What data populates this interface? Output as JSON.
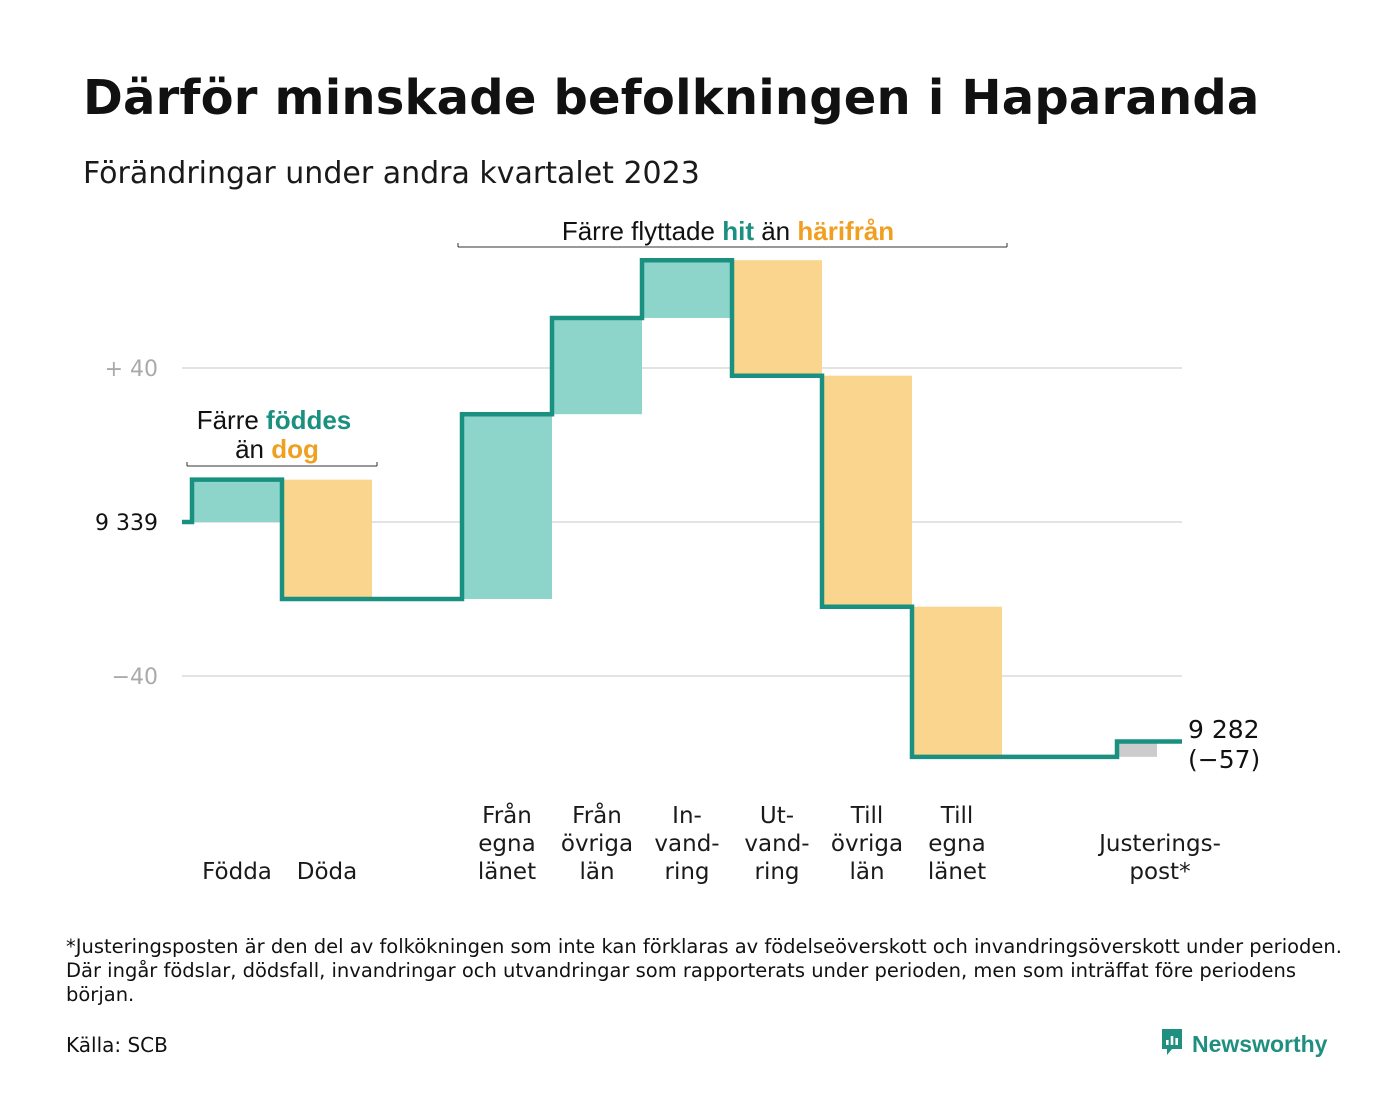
{
  "header": {
    "title": "Därför minskade befolkningen i Haparanda",
    "subtitle": "Förändringar under andra kvartalet 2023"
  },
  "colors": {
    "increase": "#8dd5cb",
    "decrease": "#fad58d",
    "adjustment": "#cccccc",
    "line": "#1a9080",
    "gridline": "#e3e3e3",
    "highlight_green": "#1a9080",
    "highlight_orange": "#f0a020"
  },
  "chart_data": {
    "type": "waterfall",
    "start_value": 9339,
    "end_value": 9282,
    "net_change": -57,
    "end_label_value": "9 282",
    "end_label_change": "(−57)",
    "ylim": [
      -62,
      70
    ],
    "y_ticks": [
      {
        "value": 40,
        "label": "+  40",
        "style": "muted"
      },
      {
        "value": 0,
        "label": "9  339",
        "style": "base"
      },
      {
        "value": -40,
        "label": "−40",
        "style": "muted"
      }
    ],
    "steps": [
      {
        "label_lines": [
          "Födda"
        ],
        "delta": 11,
        "kind": "increase"
      },
      {
        "label_lines": [
          "Döda"
        ],
        "delta": -31,
        "kind": "decrease"
      },
      {
        "label_lines": [],
        "delta": 0,
        "kind": "gap"
      },
      {
        "label_lines": [
          "Från",
          "egna",
          "länet"
        ],
        "delta": 48,
        "kind": "increase"
      },
      {
        "label_lines": [
          "Från",
          "övriga",
          "län"
        ],
        "delta": 25,
        "kind": "increase"
      },
      {
        "label_lines": [
          "In-",
          "vand-",
          "ring"
        ],
        "delta": 15,
        "kind": "increase"
      },
      {
        "label_lines": [
          "Ut-",
          "vand-",
          "ring"
        ],
        "delta": -30,
        "kind": "decrease"
      },
      {
        "label_lines": [
          "Till",
          "övriga",
          "län"
        ],
        "delta": -60,
        "kind": "decrease"
      },
      {
        "label_lines": [
          "Till",
          "egna",
          "länet"
        ],
        "delta": -39,
        "kind": "decrease"
      },
      {
        "label_lines": [],
        "delta": 0,
        "kind": "gap"
      },
      {
        "label_lines": [
          "Justerings-",
          "post*"
        ],
        "delta": 4,
        "kind": "adjustment"
      }
    ],
    "annotations": {
      "births": {
        "line1_plain": "Färre ",
        "line1_highlight": "föddes",
        "line2_plain": "än ",
        "line2_highlight": "dog"
      },
      "migration": {
        "plain1": "Färre flyttade ",
        "highlight1": "hit",
        "plain2": "än ",
        "highlight2": "härifrån"
      }
    }
  },
  "footer": {
    "footnote": "*Justeringsposten är den del av folkökningen som inte kan förklaras av födelseöverskott och invandringsöverskott under perioden. Där ingår födslar, dödsfall, invandringar och utvandringar som rapporterats under perioden, men som inträffat före periodens början.",
    "source": "Källa: SCB",
    "logo_text": "Newsworthy",
    "logo_icon": "bar-chart-speech-bubble-icon"
  }
}
